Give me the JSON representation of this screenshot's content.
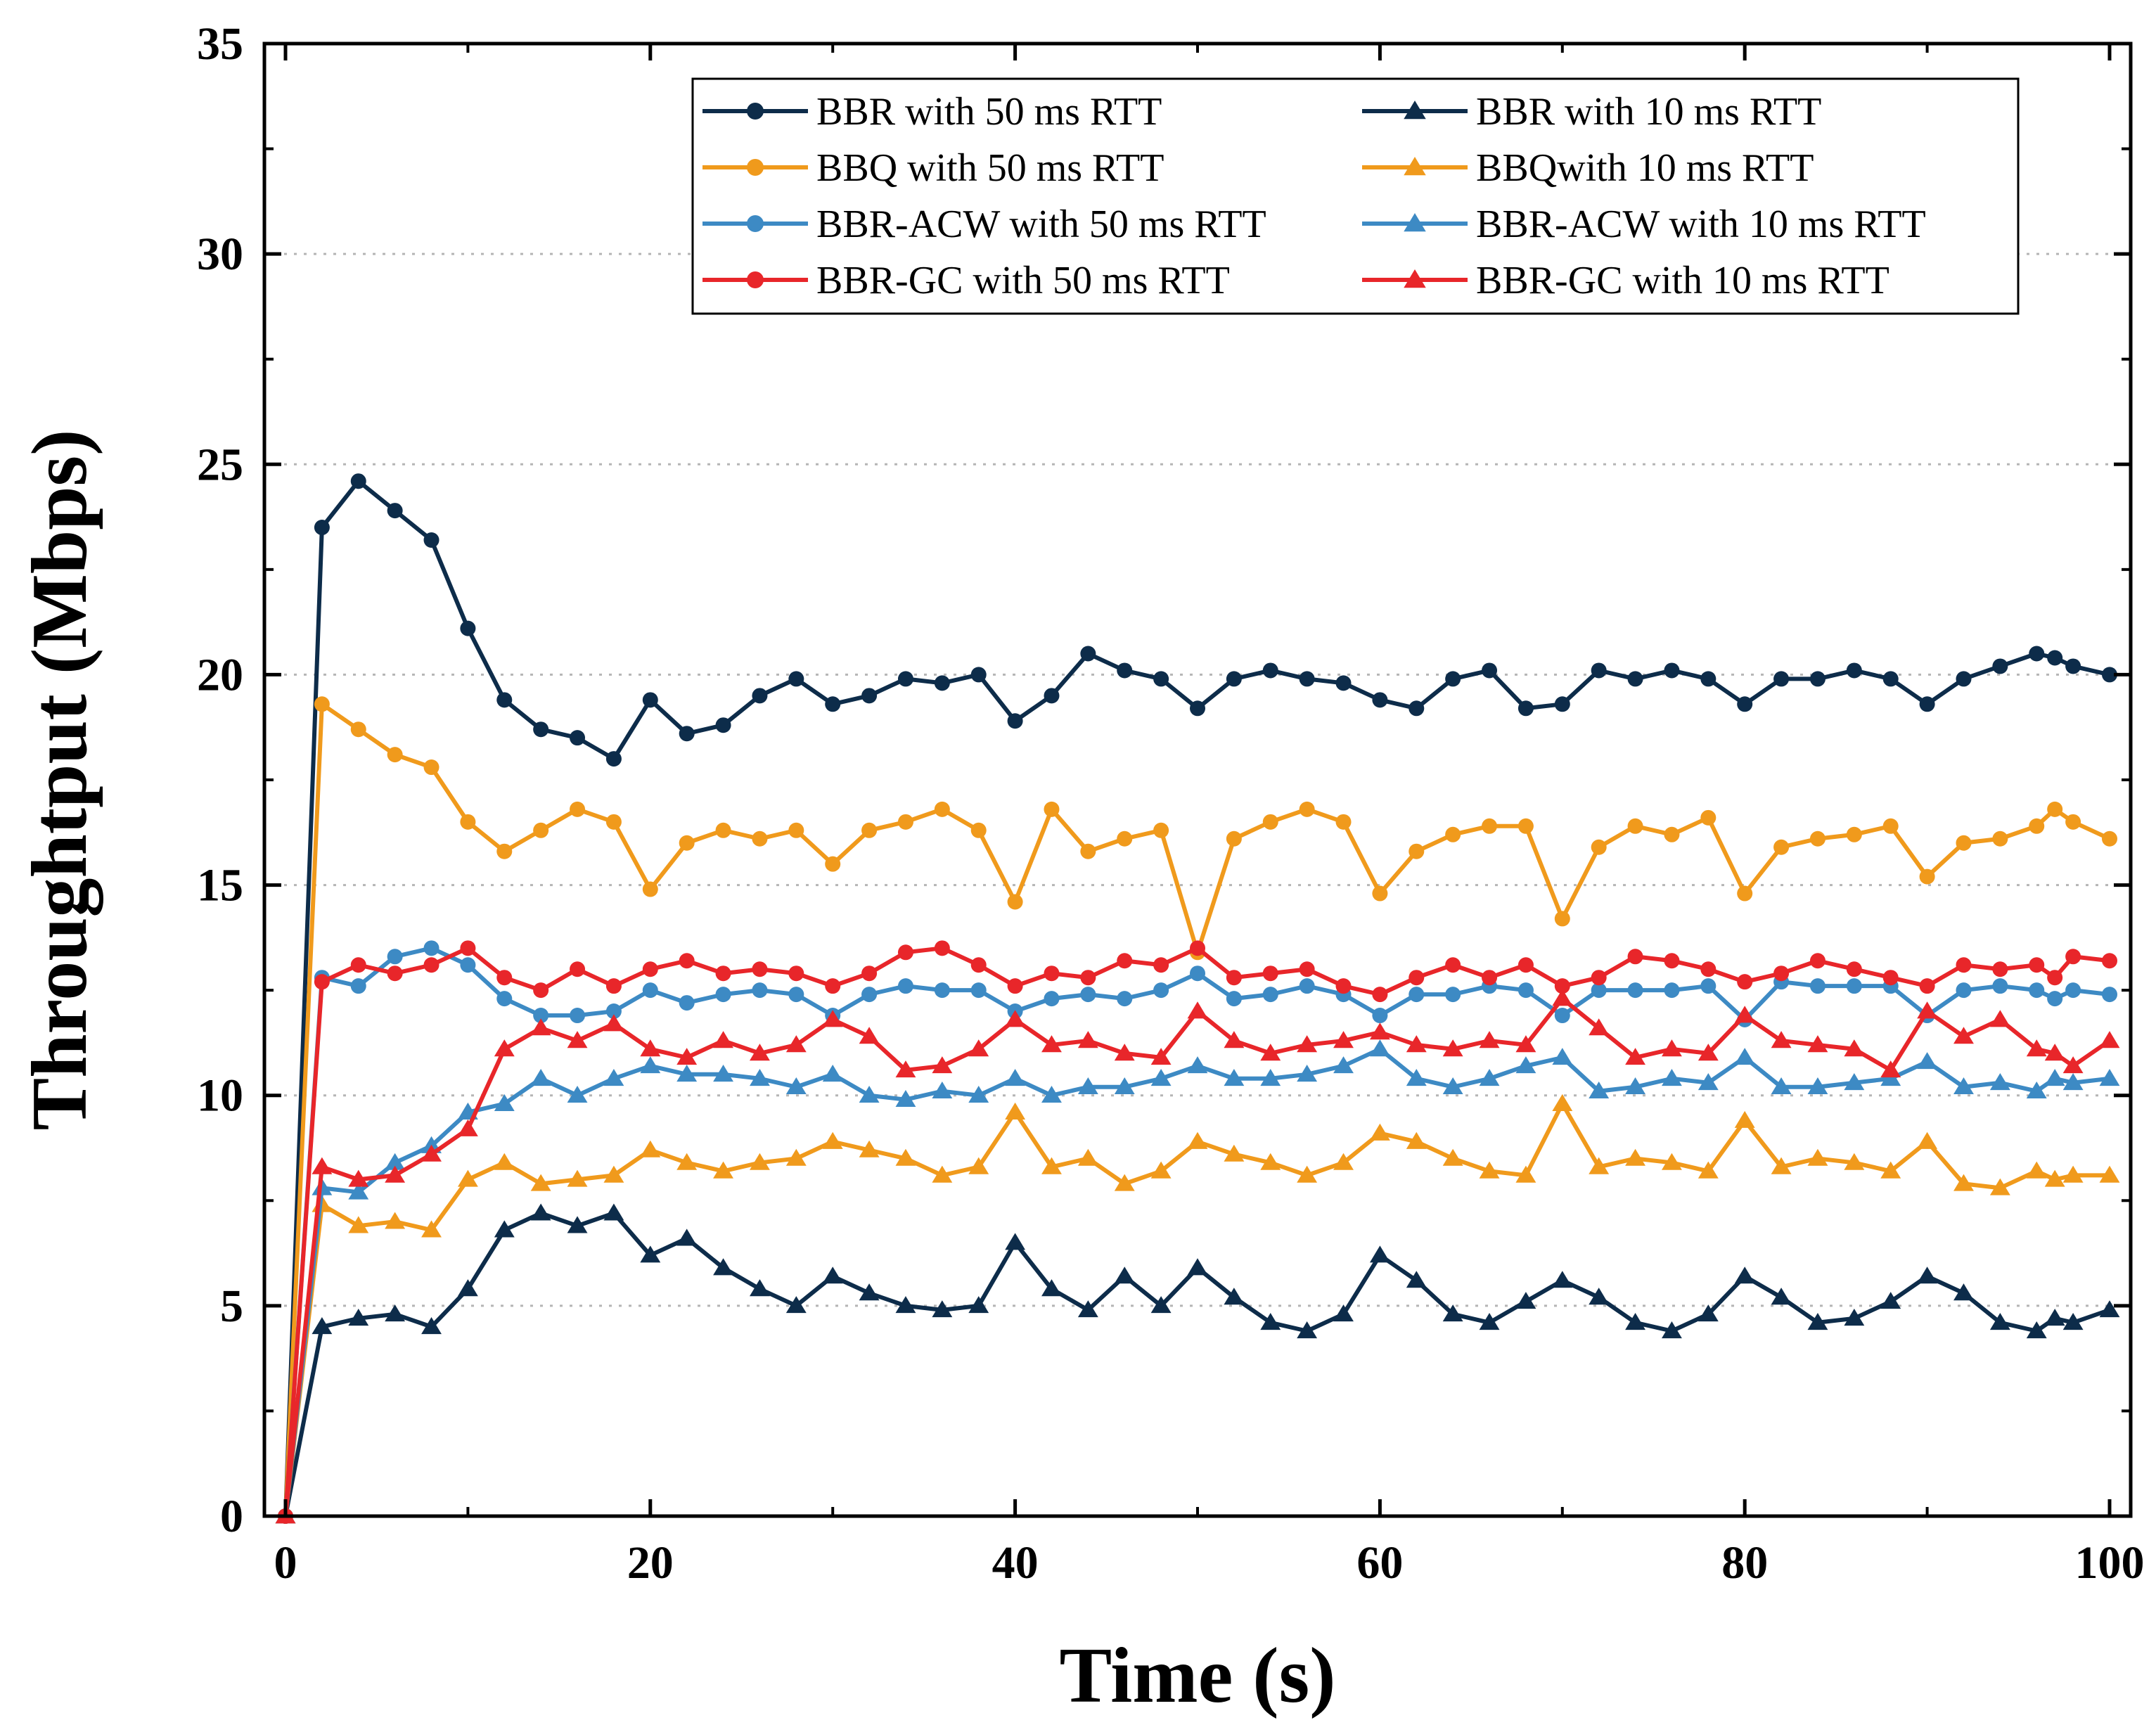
{
  "chart_data": {
    "type": "line",
    "title": "",
    "xlabel": "Time (s)",
    "ylabel": "Throughtput (Mbps)",
    "xlim": [
      0,
      100
    ],
    "ylim": [
      0,
      35
    ],
    "x_ticks": [
      0,
      20,
      40,
      60,
      80,
      100
    ],
    "y_ticks": [
      0,
      5,
      10,
      15,
      20,
      25,
      30,
      35
    ],
    "grid": "horizontal-dotted",
    "legend_position": "top-right",
    "legend_columns": 2,
    "x": [
      0,
      2,
      4,
      6,
      8,
      10,
      12,
      14,
      16,
      18,
      20,
      22,
      24,
      26,
      28,
      30,
      32,
      34,
      36,
      38,
      40,
      42,
      44,
      46,
      48,
      50,
      52,
      54,
      56,
      58,
      60,
      62,
      64,
      66,
      68,
      70,
      72,
      74,
      76,
      78,
      80,
      82,
      84,
      86,
      88,
      90,
      92,
      94,
      96,
      97,
      98,
      100
    ],
    "series": [
      {
        "name": "BBR with 50 ms RTT",
        "color": "#0d2c4a",
        "marker": "circle",
        "values": [
          0,
          23.5,
          24.6,
          23.9,
          23.2,
          21.1,
          19.4,
          18.7,
          18.5,
          18.0,
          19.4,
          18.6,
          18.8,
          19.5,
          19.9,
          19.3,
          19.5,
          19.9,
          19.8,
          20.0,
          18.9,
          19.5,
          20.5,
          20.1,
          19.9,
          19.2,
          19.9,
          20.1,
          19.9,
          19.8,
          19.4,
          19.2,
          19.9,
          20.1,
          19.2,
          19.3,
          20.1,
          19.9,
          20.1,
          19.9,
          19.3,
          19.9,
          19.9,
          20.1,
          19.9,
          19.3,
          19.9,
          20.2,
          20.5,
          20.4,
          20.2,
          20.0
        ]
      },
      {
        "name": "BBR with 10 ms RTT",
        "color": "#0d2c4a",
        "marker": "triangle",
        "values": [
          0,
          4.5,
          4.7,
          4.8,
          4.5,
          5.4,
          6.8,
          7.2,
          6.9,
          7.2,
          6.2,
          6.6,
          5.9,
          5.4,
          5.0,
          5.7,
          5.3,
          5.0,
          4.9,
          5.0,
          6.5,
          5.4,
          4.9,
          5.7,
          5.0,
          5.9,
          5.2,
          4.6,
          4.4,
          4.8,
          6.2,
          5.6,
          4.8,
          4.6,
          5.1,
          5.6,
          5.2,
          4.6,
          4.4,
          4.8,
          5.7,
          5.2,
          4.6,
          4.7,
          5.1,
          5.7,
          5.3,
          4.6,
          4.4,
          4.7,
          4.6,
          4.9
        ]
      },
      {
        "name": "BBQ with 50 ms RTT",
        "color": "#f09a1c",
        "marker": "circle",
        "values": [
          0,
          19.3,
          18.7,
          18.1,
          17.8,
          16.5,
          15.8,
          16.3,
          16.8,
          16.5,
          14.9,
          16.0,
          16.3,
          16.1,
          16.3,
          15.5,
          16.3,
          16.5,
          16.8,
          16.3,
          14.6,
          16.8,
          15.8,
          16.1,
          16.3,
          13.4,
          16.1,
          16.5,
          16.8,
          16.5,
          14.8,
          15.8,
          16.2,
          16.4,
          16.4,
          14.2,
          15.9,
          16.4,
          16.2,
          16.6,
          14.8,
          15.9,
          16.1,
          16.2,
          16.4,
          15.2,
          16.0,
          16.1,
          16.4,
          16.8,
          16.5,
          16.1
        ]
      },
      {
        "name": "BBQwith 10 ms RTT",
        "color": "#f09a1c",
        "marker": "triangle",
        "values": [
          0,
          7.4,
          6.9,
          7.0,
          6.8,
          8.0,
          8.4,
          7.9,
          8.0,
          8.1,
          8.7,
          8.4,
          8.2,
          8.4,
          8.5,
          8.9,
          8.7,
          8.5,
          8.1,
          8.3,
          9.6,
          8.3,
          8.5,
          7.9,
          8.2,
          8.9,
          8.6,
          8.4,
          8.1,
          8.4,
          9.1,
          8.9,
          8.5,
          8.2,
          8.1,
          9.8,
          8.3,
          8.5,
          8.4,
          8.2,
          9.4,
          8.3,
          8.5,
          8.4,
          8.2,
          8.9,
          7.9,
          7.8,
          8.2,
          8.0,
          8.1,
          8.1
        ]
      },
      {
        "name": "BBR-ACW with 50 ms RTT",
        "color": "#3d8ac4",
        "marker": "circle",
        "values": [
          0,
          12.8,
          12.6,
          13.3,
          13.5,
          13.1,
          12.3,
          11.9,
          11.9,
          12.0,
          12.5,
          12.2,
          12.4,
          12.5,
          12.4,
          11.9,
          12.4,
          12.6,
          12.5,
          12.5,
          12.0,
          12.3,
          12.4,
          12.3,
          12.5,
          12.9,
          12.3,
          12.4,
          12.6,
          12.4,
          11.9,
          12.4,
          12.4,
          12.6,
          12.5,
          11.9,
          12.5,
          12.5,
          12.5,
          12.6,
          11.8,
          12.7,
          12.6,
          12.6,
          12.6,
          11.9,
          12.5,
          12.6,
          12.5,
          12.3,
          12.5,
          12.4
        ]
      },
      {
        "name": "BBR-ACW with 10 ms RTT",
        "color": "#3d8ac4",
        "marker": "triangle",
        "values": [
          0,
          7.8,
          7.7,
          8.4,
          8.8,
          9.6,
          9.8,
          10.4,
          10.0,
          10.4,
          10.7,
          10.5,
          10.5,
          10.4,
          10.2,
          10.5,
          10.0,
          9.9,
          10.1,
          10.0,
          10.4,
          10.0,
          10.2,
          10.2,
          10.4,
          10.7,
          10.4,
          10.4,
          10.5,
          10.7,
          11.1,
          10.4,
          10.2,
          10.4,
          10.7,
          10.9,
          10.1,
          10.2,
          10.4,
          10.3,
          10.9,
          10.2,
          10.2,
          10.3,
          10.4,
          10.8,
          10.2,
          10.3,
          10.1,
          10.4,
          10.3,
          10.4
        ]
      },
      {
        "name": "BBR-GC with 50 ms RTT",
        "color": "#e8262a",
        "marker": "circle",
        "values": [
          0,
          12.7,
          13.1,
          12.9,
          13.1,
          13.5,
          12.8,
          12.5,
          13.0,
          12.6,
          13.0,
          13.2,
          12.9,
          13.0,
          12.9,
          12.6,
          12.9,
          13.4,
          13.5,
          13.1,
          12.6,
          12.9,
          12.8,
          13.2,
          13.1,
          13.5,
          12.8,
          12.9,
          13.0,
          12.6,
          12.4,
          12.8,
          13.1,
          12.8,
          13.1,
          12.6,
          12.8,
          13.3,
          13.2,
          13.0,
          12.7,
          12.9,
          13.2,
          13.0,
          12.8,
          12.6,
          13.1,
          13.0,
          13.1,
          12.8,
          13.3,
          13.2
        ]
      },
      {
        "name": "BBR-GC with 10 ms RTT",
        "color": "#e8262a",
        "marker": "triangle",
        "values": [
          0,
          8.3,
          8.0,
          8.1,
          8.6,
          9.2,
          11.1,
          11.6,
          11.3,
          11.7,
          11.1,
          10.9,
          11.3,
          11.0,
          11.2,
          11.8,
          11.4,
          10.6,
          10.7,
          11.1,
          11.8,
          11.2,
          11.3,
          11.0,
          10.9,
          12.0,
          11.3,
          11.0,
          11.2,
          11.3,
          11.5,
          11.2,
          11.1,
          11.3,
          11.2,
          12.3,
          11.6,
          10.9,
          11.1,
          11.0,
          11.9,
          11.3,
          11.2,
          11.1,
          10.6,
          12.0,
          11.4,
          11.8,
          11.1,
          11.0,
          10.7,
          11.3
        ]
      }
    ]
  }
}
